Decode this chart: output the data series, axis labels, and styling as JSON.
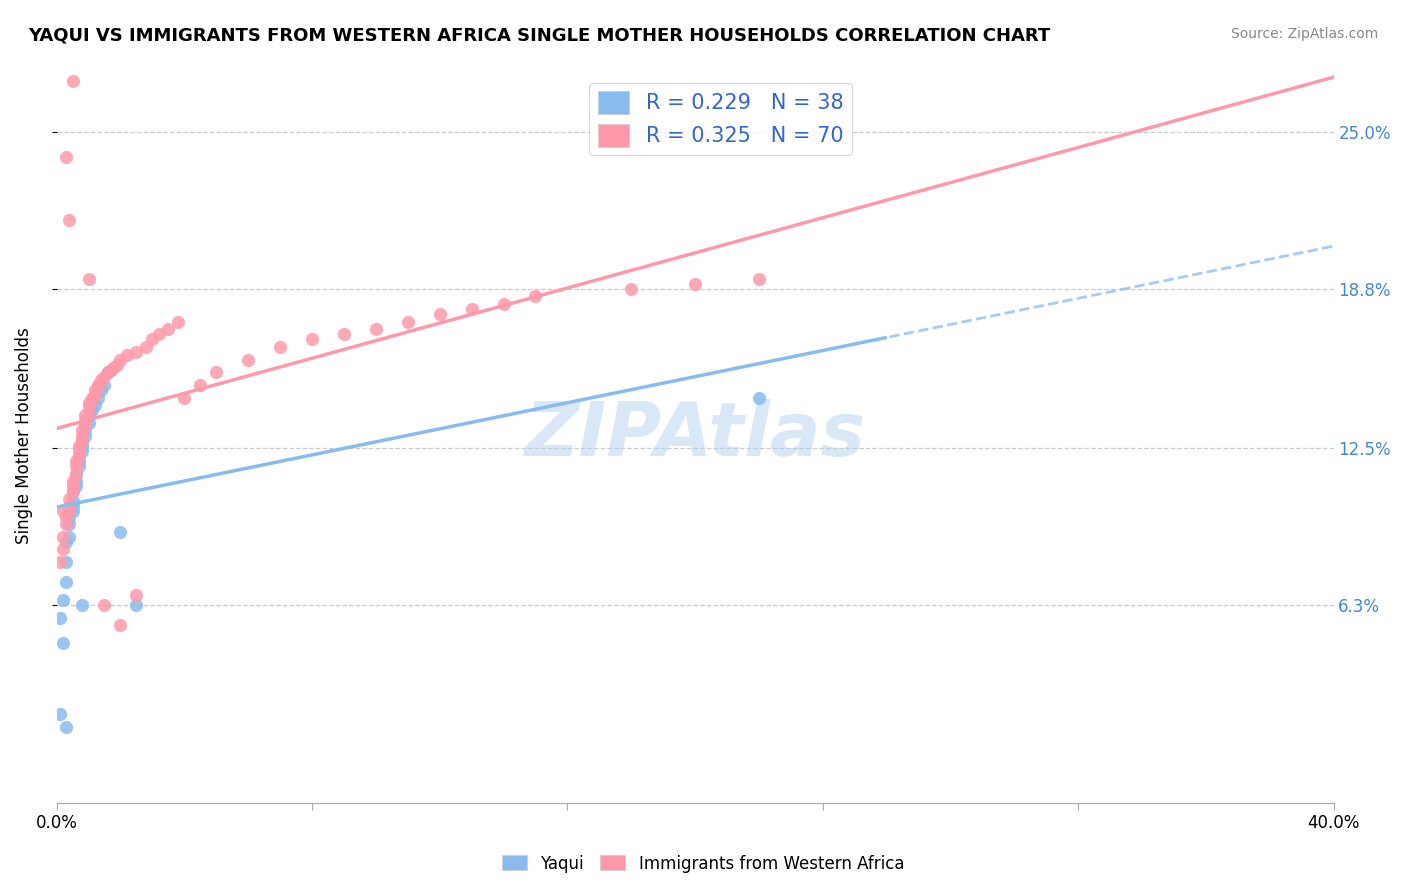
{
  "title": "YAQUI VS IMMIGRANTS FROM WESTERN AFRICA SINGLE MOTHER HOUSEHOLDS CORRELATION CHART",
  "source": "Source: ZipAtlas.com",
  "ylabel": "Single Mother Households",
  "ytick_labels": [
    "6.3%",
    "12.5%",
    "18.8%",
    "25.0%"
  ],
  "ytick_values": [
    0.063,
    0.125,
    0.188,
    0.25
  ],
  "xlim": [
    0.0,
    0.4
  ],
  "ylim": [
    -0.015,
    0.275
  ],
  "blue_color": "#88BBEE",
  "pink_color": "#FF99AA",
  "yaqui_x": [
    0.001,
    0.002,
    0.002,
    0.003,
    0.003,
    0.003,
    0.004,
    0.004,
    0.004,
    0.005,
    0.005,
    0.005,
    0.005,
    0.006,
    0.006,
    0.006,
    0.007,
    0.007,
    0.007,
    0.008,
    0.008,
    0.008,
    0.009,
    0.009,
    0.01,
    0.01,
    0.011,
    0.012,
    0.013,
    0.014,
    0.015,
    0.016,
    0.02,
    0.025,
    0.22,
    0.001,
    0.003,
    0.008
  ],
  "yaqui_y": [
    0.058,
    0.048,
    0.065,
    0.072,
    0.08,
    0.088,
    0.09,
    0.095,
    0.098,
    0.1,
    0.102,
    0.104,
    0.108,
    0.11,
    0.112,
    0.115,
    0.118,
    0.12,
    0.122,
    0.124,
    0.126,
    0.128,
    0.13,
    0.132,
    0.135,
    0.138,
    0.14,
    0.142,
    0.145,
    0.148,
    0.15,
    0.155,
    0.092,
    0.063,
    0.145,
    0.02,
    0.015,
    0.063
  ],
  "africa_x": [
    0.001,
    0.002,
    0.002,
    0.003,
    0.003,
    0.004,
    0.004,
    0.004,
    0.005,
    0.005,
    0.005,
    0.006,
    0.006,
    0.006,
    0.007,
    0.007,
    0.007,
    0.008,
    0.008,
    0.008,
    0.009,
    0.009,
    0.009,
    0.01,
    0.01,
    0.01,
    0.011,
    0.011,
    0.012,
    0.012,
    0.013,
    0.013,
    0.014,
    0.015,
    0.016,
    0.017,
    0.018,
    0.019,
    0.02,
    0.022,
    0.025,
    0.028,
    0.03,
    0.032,
    0.035,
    0.038,
    0.04,
    0.045,
    0.05,
    0.06,
    0.07,
    0.08,
    0.09,
    0.1,
    0.11,
    0.12,
    0.13,
    0.14,
    0.15,
    0.18,
    0.2,
    0.22,
    0.003,
    0.004,
    0.005,
    0.01,
    0.015,
    0.02,
    0.025,
    0.002
  ],
  "africa_y": [
    0.08,
    0.085,
    0.09,
    0.095,
    0.098,
    0.1,
    0.102,
    0.105,
    0.108,
    0.11,
    0.112,
    0.115,
    0.118,
    0.12,
    0.122,
    0.124,
    0.126,
    0.128,
    0.13,
    0.132,
    0.134,
    0.136,
    0.138,
    0.14,
    0.142,
    0.143,
    0.144,
    0.145,
    0.146,
    0.148,
    0.149,
    0.15,
    0.152,
    0.153,
    0.155,
    0.156,
    0.157,
    0.158,
    0.16,
    0.162,
    0.163,
    0.165,
    0.168,
    0.17,
    0.172,
    0.175,
    0.145,
    0.15,
    0.155,
    0.16,
    0.165,
    0.168,
    0.17,
    0.172,
    0.175,
    0.178,
    0.18,
    0.182,
    0.185,
    0.188,
    0.19,
    0.192,
    0.24,
    0.215,
    0.27,
    0.192,
    0.063,
    0.055,
    0.067,
    0.1
  ]
}
